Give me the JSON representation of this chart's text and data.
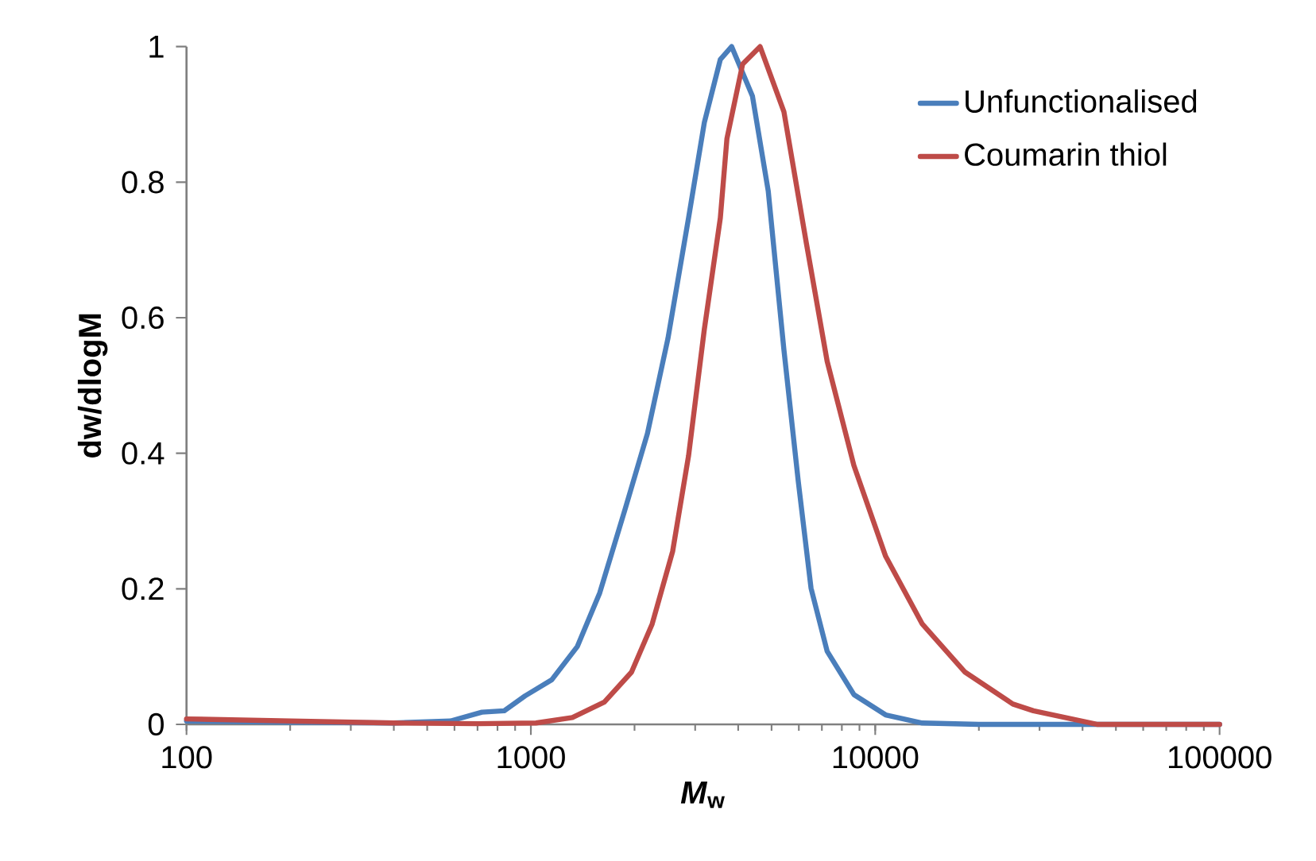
{
  "chart_data": {
    "type": "line",
    "xlabel": "*M*$_{w}$",
    "ylabel": "dw/dlogM",
    "log": "x",
    "xlim": [
      100,
      100000
    ],
    "xticks": [
      100,
      1000,
      10000,
      100000
    ],
    "ylim": [
      0,
      1
    ],
    "yticks": [
      0,
      0.2,
      0.4,
      0.6,
      0.8,
      1
    ],
    "grid": false,
    "legend": "top right",
    "marker": "none",
    "line_style": "solid",
    "series": [
      {
        "name": "Unfunctionalised",
        "color": "#4a7ebb",
        "x": [
          100,
          200,
          400,
          584,
          721,
          837,
          962,
          1151,
          1365,
          1585,
          1879,
          2180,
          2500,
          2870,
          3190,
          3550,
          3830,
          4400,
          4890,
          5430,
          5980,
          6510,
          7250,
          8670,
          10720,
          13700,
          20000,
          50000,
          100000
        ],
        "values": [
          0.005,
          0.003,
          0.002,
          0.005,
          0.018,
          0.02,
          0.042,
          0.066,
          0.115,
          0.194,
          0.318,
          0.429,
          0.569,
          0.747,
          0.888,
          0.981,
          1.0,
          0.927,
          0.787,
          0.553,
          0.358,
          0.201,
          0.108,
          0.044,
          0.014,
          0.002,
          0,
          0,
          0
        ]
      },
      {
        "name": "Coumarin thiol",
        "color": "#be4b48",
        "x": [
          100,
          200,
          400,
          700,
          1035,
          1320,
          1635,
          1960,
          2250,
          2580,
          2870,
          3190,
          3550,
          3710,
          4120,
          4630,
          5430,
          6310,
          7250,
          8670,
          10720,
          13700,
          18240,
          25100,
          28800,
          44000,
          100000
        ],
        "values": [
          0.008,
          0.005,
          0.002,
          0.001,
          0.002,
          0.01,
          0.033,
          0.077,
          0.148,
          0.255,
          0.396,
          0.583,
          0.747,
          0.864,
          0.974,
          1.0,
          0.904,
          0.71,
          0.536,
          0.382,
          0.248,
          0.148,
          0.077,
          0.03,
          0.02,
          0,
          0
        ]
      }
    ]
  }
}
